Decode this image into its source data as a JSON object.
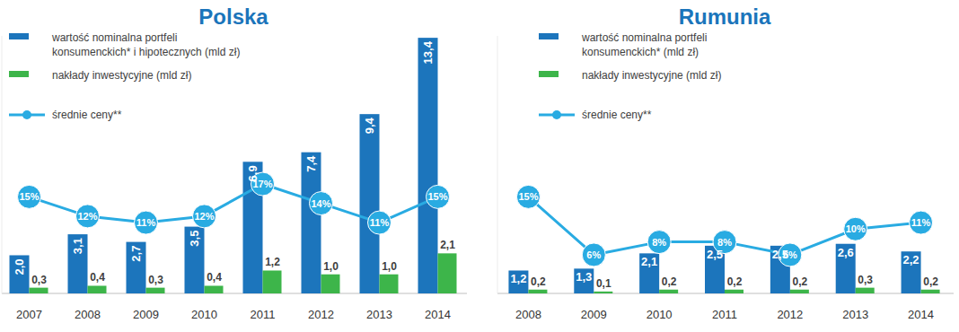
{
  "chart_data": [
    {
      "type": "bar",
      "title": "Polska",
      "categories": [
        "2007",
        "2008",
        "2009",
        "2010",
        "2011",
        "2012",
        "2013",
        "2014"
      ],
      "series": [
        {
          "name": "wartość nominalna portfeli\nkonsumenckich* i hipotecznych (mld zł)",
          "type": "bar",
          "color": "#1c75bc",
          "values": [
            2.0,
            3.1,
            2.7,
            3.5,
            6.9,
            7.4,
            9.4,
            13.4
          ],
          "value_labels": [
            "2,0",
            "3,1",
            "2,7",
            "3,5",
            "6,9",
            "7,4",
            "9,4",
            "13,4"
          ]
        },
        {
          "name": "nakłady inwestycyjne (mld zł)",
          "type": "bar",
          "color": "#3db54a",
          "values": [
            0.3,
            0.4,
            0.3,
            0.4,
            1.2,
            1.0,
            1.0,
            2.1
          ],
          "value_labels": [
            "0,3",
            "0,4",
            "0,3",
            "0,4",
            "1,2",
            "1,0",
            "1,0",
            "2,1"
          ]
        },
        {
          "name": "średnie ceny**",
          "type": "line",
          "axis": "y2",
          "color": "#29abe2",
          "marker": "circle",
          "values": [
            15,
            12,
            11,
            12,
            17,
            14,
            11,
            15
          ],
          "value_labels": [
            "15%",
            "12%",
            "11%",
            "12%",
            "17%",
            "14%",
            "11%",
            "15%"
          ]
        }
      ],
      "ylim": [
        0,
        13.5
      ],
      "y2lim": [
        0,
        40
      ],
      "data_labels": true,
      "tick_labels": "x",
      "legend": "top-left"
    },
    {
      "type": "bar",
      "title": "Rumunia",
      "categories": [
        "2008",
        "2009",
        "2010",
        "2011",
        "2012",
        "2013",
        "2014"
      ],
      "series": [
        {
          "name": "wartość nominalna portfeli\nkonsumenckich* (mld zł)",
          "type": "bar",
          "color": "#1c75bc",
          "values": [
            1.2,
            1.3,
            2.1,
            2.5,
            2.5,
            2.6,
            2.2
          ],
          "value_labels": [
            "1,2",
            "1,3",
            "2,1",
            "2,5",
            "2,5",
            "2,6",
            "2,2"
          ]
        },
        {
          "name": "nakłady inwestycyjne (mld zł)",
          "type": "bar",
          "color": "#3db54a",
          "values": [
            0.2,
            0.1,
            0.2,
            0.2,
            0.2,
            0.3,
            0.2
          ],
          "value_labels": [
            "0,2",
            "0,1",
            "0,2",
            "0,2",
            "0,2",
            "0,3",
            "0,2"
          ]
        },
        {
          "name": "średnie ceny**",
          "type": "line",
          "axis": "y2",
          "color": "#29abe2",
          "marker": "circle",
          "values": [
            15,
            6,
            8,
            8,
            6,
            10,
            11
          ],
          "value_labels": [
            "15%",
            "6%",
            "8%",
            "8%",
            "6%",
            "10%",
            "11%"
          ]
        }
      ],
      "ylim": [
        0,
        13.5
      ],
      "y2lim": [
        0,
        40
      ],
      "data_labels": true,
      "tick_labels": "x",
      "legend": "top-left"
    }
  ]
}
